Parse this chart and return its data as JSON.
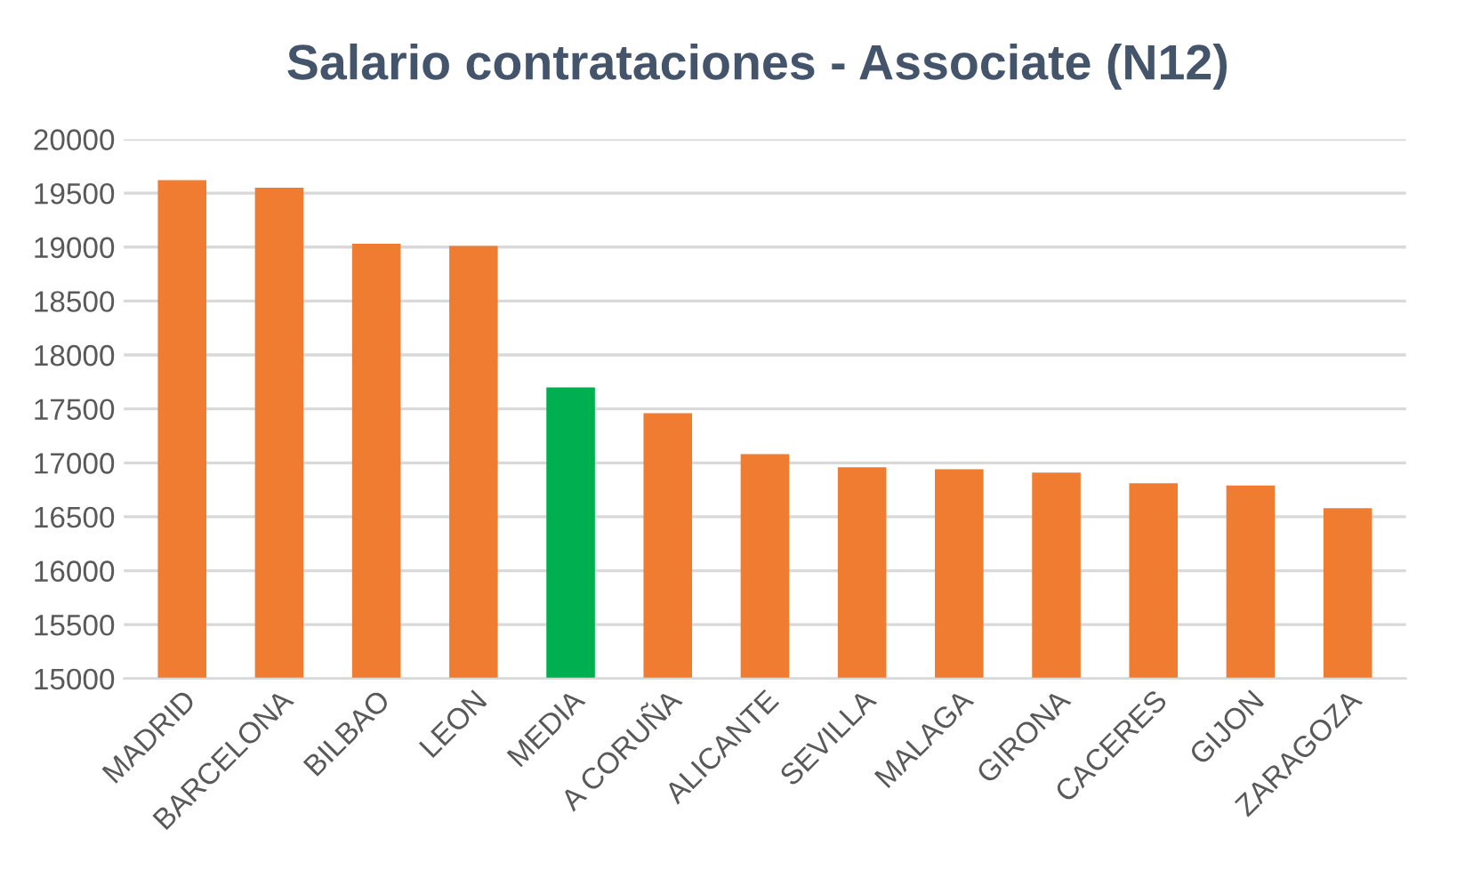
{
  "chart_data": {
    "type": "bar",
    "title": "Salario contrataciones - Associate (N12)",
    "categories": [
      "MADRID",
      "BARCELONA",
      "BILBAO",
      "LEON",
      "MEDIA",
      "A CORUÑA",
      "ALICANTE",
      "SEVILLA",
      "MALAGA",
      "GIRONA",
      "CACERES",
      "GIJON",
      "ZARAGOZA"
    ],
    "values": [
      19620,
      19550,
      19030,
      19010,
      17700,
      17460,
      17080,
      16960,
      16940,
      16910,
      16810,
      16790,
      16580
    ],
    "colors": [
      "#f07c32",
      "#f07c32",
      "#f07c32",
      "#f07c32",
      "#00b050",
      "#f07c32",
      "#f07c32",
      "#f07c32",
      "#f07c32",
      "#f07c32",
      "#f07c32",
      "#f07c32",
      "#f07c32"
    ],
    "ylim": [
      15000,
      20000
    ],
    "yticks": [
      15000,
      15500,
      16000,
      16500,
      17000,
      17500,
      18000,
      18500,
      19000,
      19500,
      20000
    ],
    "grid": "y"
  }
}
